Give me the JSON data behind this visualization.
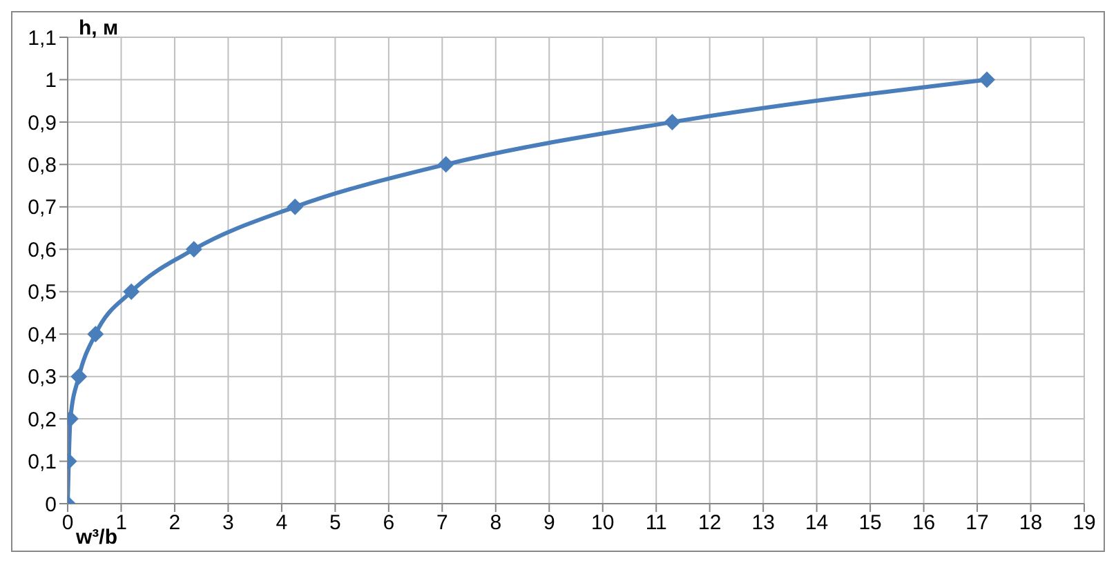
{
  "chart_data": {
    "type": "line",
    "xlabel": "w³/b",
    "ylabel": "h, м",
    "x": [
      0,
      0.02,
      0.05,
      0.21,
      0.52,
      1.19,
      2.36,
      4.25,
      7.07,
      11.3,
      17.18
    ],
    "series": [
      {
        "color": "#4a7ebb",
        "values": [
          0,
          0.1,
          0.2,
          0.3,
          0.4,
          0.5,
          0.6,
          0.7,
          0.8,
          0.9,
          1
        ]
      }
    ],
    "xlim": [
      0,
      19
    ],
    "xticks": [
      0,
      1,
      2,
      3,
      4,
      5,
      6,
      7,
      8,
      9,
      10,
      11,
      12,
      13,
      14,
      15,
      16,
      17,
      18,
      19
    ],
    "ylim": [
      0,
      1.1
    ],
    "yticks": [
      0,
      {
        "value": 0.1,
        "label": "0,1"
      },
      {
        "value": 0.2,
        "label": "0,2"
      },
      {
        "value": 0.3,
        "label": "0,3"
      },
      {
        "value": 0.4,
        "label": "0,4"
      },
      {
        "value": 0.5,
        "label": "0,5"
      },
      {
        "value": 0.6,
        "label": "0,6"
      },
      {
        "value": 0.7,
        "label": "0,7"
      },
      {
        "value": 0.8,
        "label": "0,8"
      },
      {
        "value": 0.9,
        "label": "0,9"
      },
      1,
      {
        "value": 1.1,
        "label": "1,1"
      }
    ],
    "grid": true,
    "marker": "diamond",
    "line_style": "solid",
    "legend": false
  }
}
